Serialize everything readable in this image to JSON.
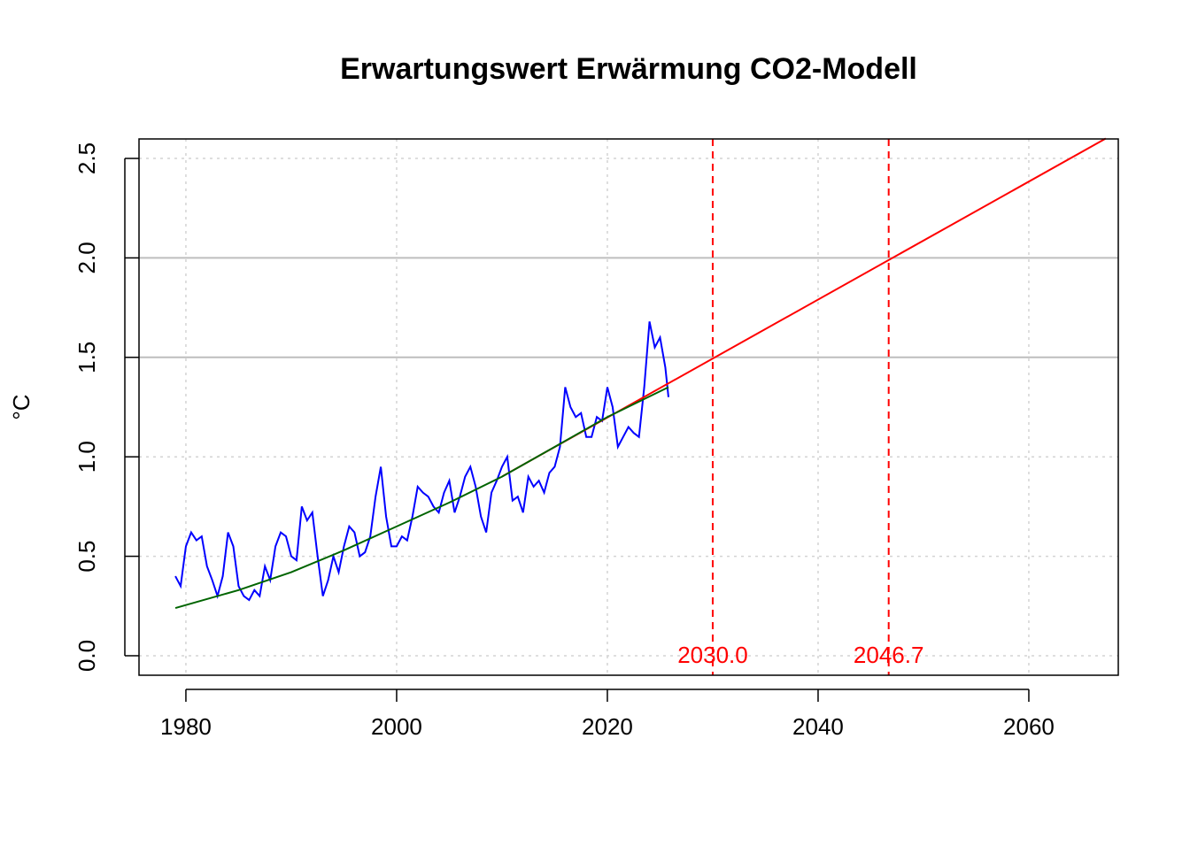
{
  "chart_data": {
    "type": "line",
    "title": "Erwartungswert Erwärmung CO2-Modell",
    "ylabel": "°C",
    "xlim": [
      1975.55,
      2068.49
    ],
    "xticks": [
      1980,
      2000,
      2020,
      2040,
      2060
    ],
    "ylim": [
      -0.098,
      2.598
    ],
    "yticks": [
      {
        "value": 0,
        "label": "0.0"
      },
      0.5,
      {
        "value": 1,
        "label": "1.0"
      },
      1.5,
      {
        "value": 2,
        "label": "2.0"
      },
      2.5
    ],
    "grid": true,
    "reference_lines": [
      1.5,
      2.0
    ],
    "vlines": [
      {
        "value": 2030.0,
        "label": "2030.0"
      },
      {
        "value": 2046.7,
        "label": "2046.7"
      }
    ],
    "vline_color": "#ff0000",
    "series": [
      {
        "color": "#0000ff",
        "x": [
          1979.0,
          1979.5,
          1980.0,
          1980.5,
          1981.0,
          1981.5,
          1982.0,
          1982.5,
          1983.0,
          1983.5,
          1984.0,
          1984.5,
          1985.0,
          1985.5,
          1986.0,
          1986.5,
          1987.0,
          1987.5,
          1988.0,
          1988.5,
          1989.0,
          1989.5,
          1990.0,
          1990.5,
          1991.0,
          1991.5,
          1992.0,
          1992.5,
          1993.0,
          1993.5,
          1994.0,
          1994.5,
          1995.0,
          1995.5,
          1996.0,
          1996.5,
          1997.0,
          1997.5,
          1998.0,
          1998.5,
          1999.0,
          1999.5,
          2000.0,
          2000.5,
          2001.0,
          2001.5,
          2002.0,
          2002.5,
          2003.0,
          2003.5,
          2004.0,
          2004.5,
          2005.0,
          2005.5,
          2006.0,
          2006.5,
          2007.0,
          2007.5,
          2008.0,
          2008.5,
          2009.0,
          2009.5,
          2010.0,
          2010.5,
          2011.0,
          2011.5,
          2012.0,
          2012.5,
          2013.0,
          2013.5,
          2014.0,
          2014.5,
          2015.0,
          2015.5,
          2016.0,
          2016.5,
          2017.0,
          2017.5,
          2018.0,
          2018.5,
          2019.0,
          2019.5,
          2020.0,
          2020.5,
          2021.0,
          2021.5,
          2022.0,
          2022.5,
          2023.0,
          2023.5,
          2024.0,
          2024.5,
          2025.0,
          2025.5,
          2025.8
        ],
        "values": [
          0.4,
          0.35,
          0.55,
          0.62,
          0.58,
          0.6,
          0.45,
          0.38,
          0.3,
          0.4,
          0.62,
          0.55,
          0.35,
          0.3,
          0.28,
          0.33,
          0.3,
          0.45,
          0.38,
          0.55,
          0.62,
          0.6,
          0.5,
          0.48,
          0.75,
          0.68,
          0.72,
          0.5,
          0.3,
          0.38,
          0.5,
          0.42,
          0.55,
          0.65,
          0.62,
          0.5,
          0.52,
          0.6,
          0.8,
          0.95,
          0.7,
          0.55,
          0.55,
          0.6,
          0.58,
          0.7,
          0.85,
          0.82,
          0.8,
          0.75,
          0.72,
          0.82,
          0.88,
          0.72,
          0.8,
          0.9,
          0.95,
          0.85,
          0.7,
          0.62,
          0.82,
          0.88,
          0.95,
          1.0,
          0.78,
          0.8,
          0.72,
          0.9,
          0.85,
          0.88,
          0.82,
          0.92,
          0.95,
          1.05,
          1.35,
          1.25,
          1.2,
          1.22,
          1.1,
          1.1,
          1.2,
          1.18,
          1.35,
          1.25,
          1.05,
          1.1,
          1.15,
          1.12,
          1.1,
          1.35,
          1.68,
          1.55,
          1.6,
          1.45,
          1.3
        ]
      },
      {
        "color": "#ff0000",
        "x": [
          2010,
          2067.3
        ],
        "values": [
          0.901,
          2.6
        ]
      },
      {
        "color": "#006400",
        "x": [
          1979,
          1985,
          1990,
          1995,
          2000,
          2005,
          2010,
          2015,
          2020,
          2025.8
        ],
        "values": [
          0.24,
          0.33,
          0.42,
          0.53,
          0.65,
          0.77,
          0.9,
          1.05,
          1.2,
          1.35
        ]
      }
    ]
  }
}
